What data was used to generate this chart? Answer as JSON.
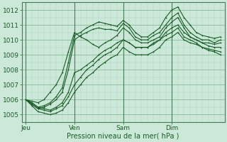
{
  "title": "",
  "xlabel": "Pression niveau de la mer( hPa )",
  "ylabel": "",
  "ylim": [
    1004.5,
    1012.5
  ],
  "xlim": [
    -2,
    98
  ],
  "xticks": [
    0,
    24,
    48,
    72
  ],
  "xticklabels": [
    "Jeu",
    "Ven",
    "Sam",
    "Dim"
  ],
  "yticks": [
    1005,
    1006,
    1007,
    1008,
    1009,
    1010,
    1011,
    1012
  ],
  "bg_color": "#cce8d8",
  "grid_major_color": "#88b898",
  "grid_minor_color": "#aad4bc",
  "line_color": "#1a5c28",
  "vline_color": "#4a7a5a",
  "lines": [
    {
      "x": [
        0,
        3,
        6,
        9,
        12,
        15,
        18,
        21,
        24,
        27,
        30,
        33,
        36,
        39,
        42,
        45,
        48,
        51,
        54,
        57,
        60,
        63,
        66,
        69,
        72,
        75,
        78,
        81,
        84,
        87,
        90,
        93,
        96
      ],
      "y": [
        1006.0,
        1005.8,
        1005.5,
        1005.6,
        1005.8,
        1006.2,
        1006.8,
        1008.5,
        1010.3,
        1010.5,
        1010.8,
        1011.0,
        1011.2,
        1011.1,
        1011.0,
        1010.9,
        1011.3,
        1011.0,
        1010.5,
        1010.2,
        1010.2,
        1010.5,
        1010.8,
        1011.5,
        1012.0,
        1012.2,
        1011.5,
        1011.0,
        1010.5,
        1010.3,
        1010.2,
        1010.1,
        1010.2
      ]
    },
    {
      "x": [
        0,
        3,
        6,
        9,
        12,
        15,
        18,
        21,
        24,
        27,
        30,
        33,
        36,
        39,
        42,
        45,
        48,
        51,
        54,
        57,
        60,
        63,
        66,
        69,
        72,
        75,
        78,
        81,
        84,
        87,
        90,
        93,
        96
      ],
      "y": [
        1006.0,
        1005.7,
        1005.4,
        1005.5,
        1005.7,
        1006.0,
        1006.5,
        1008.0,
        1010.0,
        1010.3,
        1010.5,
        1010.7,
        1010.8,
        1010.7,
        1010.7,
        1010.6,
        1011.1,
        1010.8,
        1010.2,
        1010.0,
        1010.0,
        1010.3,
        1010.5,
        1011.0,
        1011.5,
        1011.8,
        1011.0,
        1010.5,
        1010.2,
        1010.0,
        1010.0,
        1009.8,
        1010.0
      ]
    },
    {
      "x": [
        0,
        3,
        6,
        9,
        12,
        15,
        18,
        21,
        24,
        27,
        30,
        33,
        36,
        39,
        42,
        45,
        48,
        51,
        54,
        57,
        60,
        63,
        66,
        69,
        72,
        75,
        78,
        81,
        84,
        87,
        90,
        93,
        96
      ],
      "y": [
        1006.0,
        1005.9,
        1005.8,
        1006.0,
        1006.5,
        1007.0,
        1007.8,
        1009.2,
        1010.5,
        1010.2,
        1010.0,
        1009.7,
        1009.5,
        1009.8,
        1010.0,
        1010.3,
        1010.8,
        1010.5,
        1010.0,
        1009.8,
        1009.8,
        1010.0,
        1010.2,
        1010.8,
        1011.2,
        1011.5,
        1010.8,
        1010.2,
        1010.0,
        1009.8,
        1009.8,
        1009.7,
        1009.8
      ]
    },
    {
      "x": [
        0,
        3,
        6,
        9,
        12,
        15,
        18,
        21,
        24,
        27,
        30,
        33,
        36,
        39,
        42,
        45,
        48,
        51,
        54,
        57,
        60,
        63,
        66,
        69,
        72,
        75,
        78,
        81,
        84,
        87,
        90,
        93,
        96
      ],
      "y": [
        1006.0,
        1005.8,
        1005.5,
        1005.4,
        1005.3,
        1005.5,
        1005.8,
        1006.5,
        1007.8,
        1008.0,
        1008.3,
        1008.6,
        1009.0,
        1009.3,
        1009.5,
        1009.8,
        1010.0,
        1009.8,
        1009.5,
        1009.5,
        1009.5,
        1009.8,
        1010.0,
        1010.5,
        1010.8,
        1011.0,
        1010.5,
        1010.2,
        1010.0,
        1009.8,
        1009.6,
        1009.5,
        1009.5
      ]
    },
    {
      "x": [
        0,
        3,
        6,
        9,
        12,
        15,
        18,
        21,
        24,
        27,
        30,
        33,
        36,
        39,
        42,
        45,
        48,
        51,
        54,
        57,
        60,
        63,
        66,
        69,
        72,
        75,
        78,
        81,
        84,
        87,
        90,
        93,
        96
      ],
      "y": [
        1006.0,
        1005.6,
        1005.2,
        1005.1,
        1005.0,
        1005.1,
        1005.3,
        1005.8,
        1006.5,
        1007.0,
        1007.5,
        1007.8,
        1008.2,
        1008.5,
        1008.8,
        1009.0,
        1009.5,
        1009.2,
        1009.0,
        1009.0,
        1009.0,
        1009.2,
        1009.5,
        1010.0,
        1010.2,
        1010.5,
        1010.0,
        1009.8,
        1009.7,
        1009.5,
        1009.4,
        1009.3,
        1009.2
      ]
    },
    {
      "x": [
        0,
        3,
        6,
        9,
        12,
        15,
        18,
        21,
        24,
        27,
        30,
        33,
        36,
        39,
        42,
        45,
        48,
        51,
        54,
        57,
        60,
        63,
        66,
        69,
        72,
        75,
        78,
        81,
        84,
        87,
        90,
        93,
        96
      ],
      "y": [
        1006.0,
        1005.7,
        1005.4,
        1005.3,
        1005.2,
        1005.4,
        1005.6,
        1006.2,
        1007.0,
        1007.5,
        1008.0,
        1008.3,
        1008.7,
        1009.0,
        1009.2,
        1009.5,
        1010.0,
        1009.8,
        1009.5,
        1009.5,
        1009.5,
        1009.7,
        1010.0,
        1010.3,
        1010.5,
        1010.8,
        1010.2,
        1010.0,
        1009.8,
        1009.5,
        1009.3,
        1009.2,
        1009.0
      ]
    }
  ]
}
